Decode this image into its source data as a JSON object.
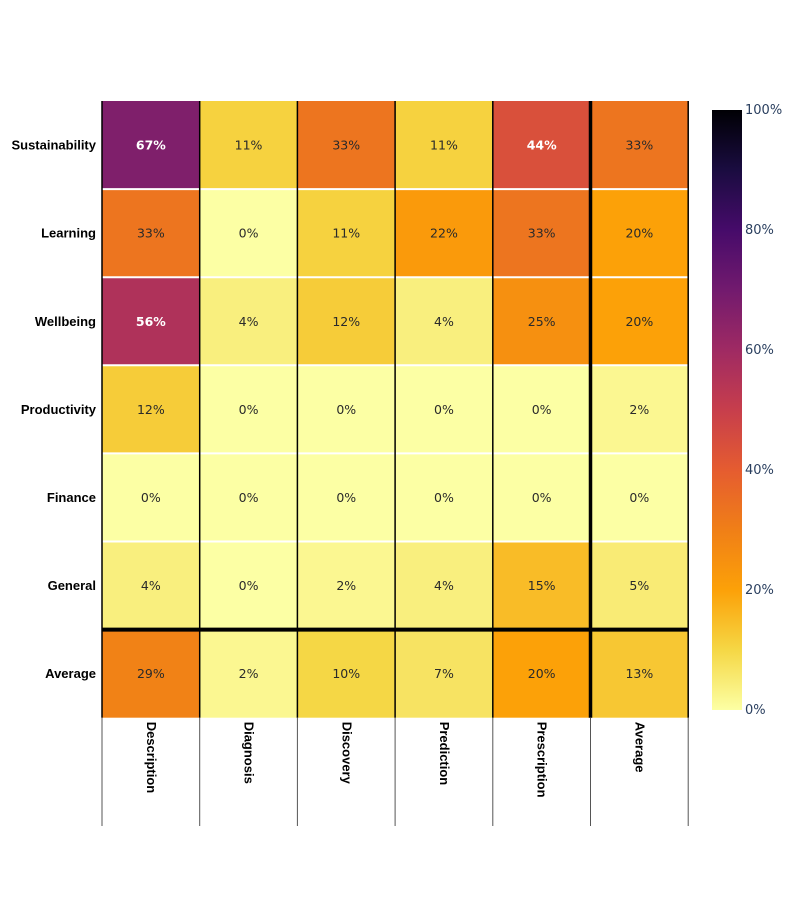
{
  "chart_data": {
    "type": "heatmap",
    "title": "",
    "xlabel": "",
    "ylabel": "",
    "x_categories": [
      "Description",
      "Diagnosis",
      "Discovery",
      "Prediction",
      "Prescription",
      "Average"
    ],
    "y_categories": [
      "Sustainability",
      "Learning",
      "Wellbeing",
      "Productivity",
      "Finance",
      "General",
      "Average"
    ],
    "values": [
      [
        67,
        11,
        33,
        11,
        44,
        33
      ],
      [
        33,
        0,
        11,
        22,
        33,
        20
      ],
      [
        56,
        4,
        12,
        4,
        25,
        20
      ],
      [
        12,
        0,
        0,
        0,
        0,
        2
      ],
      [
        0,
        0,
        0,
        0,
        0,
        0
      ],
      [
        4,
        0,
        2,
        4,
        15,
        5
      ],
      [
        29,
        2,
        10,
        7,
        20,
        13
      ]
    ],
    "value_suffix": "%",
    "colorscale": "inferno (reversed)",
    "zlim": [
      0,
      100
    ],
    "colorbar": {
      "ticks": [
        "0%",
        "20%",
        "40%",
        "60%",
        "80%",
        "100%"
      ],
      "tick_values": [
        0,
        20,
        40,
        60,
        80,
        100
      ],
      "placement": "right"
    },
    "separators": {
      "thick_line_above_row": "Average",
      "thick_line_before_column": "Average"
    }
  }
}
